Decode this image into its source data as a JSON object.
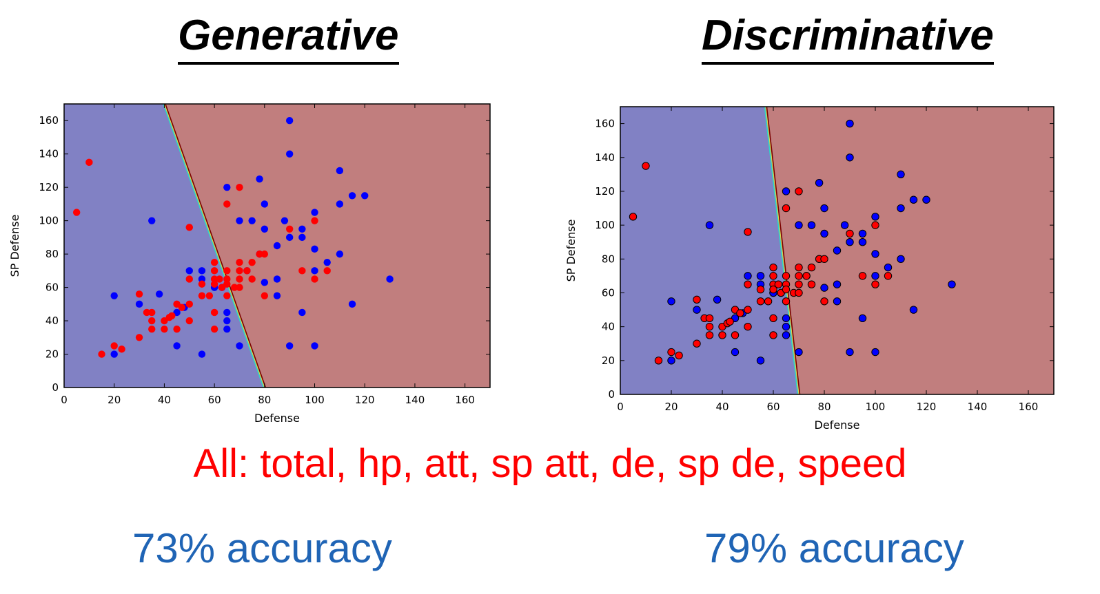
{
  "titles": {
    "left": "Generative",
    "right": "Discriminative"
  },
  "features_text": "All: total, hp, att, sp att, de, sp de, speed",
  "accuracy": {
    "left": "73% accuracy",
    "right": "79% accuracy"
  },
  "colors": {
    "region_blue": "#8181c4",
    "region_red": "#c17e7e",
    "point_blue": "#0000ff",
    "point_red": "#ff0000",
    "features": "#ff0000",
    "accuracy": "#1f64b5"
  },
  "chart_data": [
    {
      "type": "scatter",
      "title": "Generative",
      "xlabel": "Defense",
      "ylabel": "SP Defense",
      "xlim": [
        0,
        170
      ],
      "ylim": [
        0,
        170
      ],
      "xticks": [
        0,
        20,
        40,
        60,
        80,
        100,
        120,
        140,
        160
      ],
      "yticks": [
        0,
        20,
        40,
        60,
        80,
        100,
        120,
        140,
        160
      ],
      "boundary": [
        [
          40,
          170
        ],
        [
          80,
          0
        ]
      ],
      "marker_edge": false,
      "series": [
        {
          "name": "class-blue",
          "color": "#0000ff",
          "points": [
            [
              20,
              20
            ],
            [
              20,
              55
            ],
            [
              30,
              50
            ],
            [
              35,
              100
            ],
            [
              38,
              56
            ],
            [
              45,
              25
            ],
            [
              45,
              45
            ],
            [
              48,
              48
            ],
            [
              50,
              70
            ],
            [
              55,
              20
            ],
            [
              55,
              65
            ],
            [
              55,
              70
            ],
            [
              60,
              60
            ],
            [
              60,
              60
            ],
            [
              63,
              60
            ],
            [
              63,
              60
            ],
            [
              65,
              45
            ],
            [
              65,
              40
            ],
            [
              65,
              35
            ],
            [
              65,
              120
            ],
            [
              70,
              25
            ],
            [
              70,
              100
            ],
            [
              73,
              70
            ],
            [
              75,
              100
            ],
            [
              78,
              80
            ],
            [
              78,
              125
            ],
            [
              80,
              110
            ],
            [
              80,
              95
            ],
            [
              80,
              63
            ],
            [
              85,
              65
            ],
            [
              85,
              55
            ],
            [
              85,
              85
            ],
            [
              88,
              100
            ],
            [
              90,
              90
            ],
            [
              90,
              160
            ],
            [
              90,
              140
            ],
            [
              90,
              25
            ],
            [
              95,
              95
            ],
            [
              95,
              90
            ],
            [
              95,
              45
            ],
            [
              100,
              25
            ],
            [
              100,
              105
            ],
            [
              100,
              83
            ],
            [
              100,
              70
            ],
            [
              105,
              75
            ],
            [
              110,
              130
            ],
            [
              110,
              110
            ],
            [
              110,
              80
            ],
            [
              115,
              115
            ],
            [
              115,
              50
            ],
            [
              120,
              115
            ],
            [
              130,
              65
            ]
          ]
        },
        {
          "name": "class-red",
          "color": "#ff0000",
          "points": [
            [
              5,
              105
            ],
            [
              10,
              135
            ],
            [
              15,
              20
            ],
            [
              20,
              25
            ],
            [
              23,
              23
            ],
            [
              30,
              30
            ],
            [
              30,
              56
            ],
            [
              33,
              45
            ],
            [
              35,
              45
            ],
            [
              35,
              40
            ],
            [
              35,
              35
            ],
            [
              40,
              40
            ],
            [
              40,
              35
            ],
            [
              42,
              42
            ],
            [
              43,
              43
            ],
            [
              45,
              35
            ],
            [
              45,
              50
            ],
            [
              47,
              48
            ],
            [
              50,
              50
            ],
            [
              50,
              65
            ],
            [
              50,
              96
            ],
            [
              50,
              40
            ],
            [
              55,
              55
            ],
            [
              55,
              62
            ],
            [
              58,
              55
            ],
            [
              60,
              75
            ],
            [
              60,
              70
            ],
            [
              60,
              65
            ],
            [
              60,
              62
            ],
            [
              60,
              45
            ],
            [
              60,
              35
            ],
            [
              62,
              65
            ],
            [
              63,
              60
            ],
            [
              65,
              110
            ],
            [
              65,
              70
            ],
            [
              65,
              65
            ],
            [
              65,
              62
            ],
            [
              65,
              55
            ],
            [
              68,
              60
            ],
            [
              70,
              120
            ],
            [
              70,
              75
            ],
            [
              70,
              70
            ],
            [
              70,
              65
            ],
            [
              70,
              60
            ],
            [
              73,
              70
            ],
            [
              75,
              75
            ],
            [
              75,
              65
            ],
            [
              78,
              80
            ],
            [
              80,
              80
            ],
            [
              80,
              55
            ],
            [
              90,
              95
            ],
            [
              95,
              70
            ],
            [
              100,
              100
            ],
            [
              100,
              65
            ],
            [
              105,
              70
            ]
          ]
        }
      ]
    },
    {
      "type": "scatter",
      "title": "Discriminative",
      "xlabel": "Defense",
      "ylabel": "SP Defense",
      "xlim": [
        0,
        170
      ],
      "ylim": [
        0,
        170
      ],
      "xticks": [
        0,
        20,
        40,
        60,
        80,
        100,
        120,
        140,
        160
      ],
      "yticks": [
        0,
        20,
        40,
        60,
        80,
        100,
        120,
        140,
        160
      ],
      "boundary": [
        [
          57,
          170
        ],
        [
          70,
          0
        ]
      ],
      "marker_edge": true,
      "series": [
        {
          "name": "class-blue",
          "color": "#0000ff",
          "points": [
            [
              20,
              20
            ],
            [
              20,
              55
            ],
            [
              30,
              50
            ],
            [
              35,
              100
            ],
            [
              38,
              56
            ],
            [
              45,
              25
            ],
            [
              45,
              45
            ],
            [
              48,
              48
            ],
            [
              50,
              70
            ],
            [
              55,
              20
            ],
            [
              55,
              65
            ],
            [
              55,
              70
            ],
            [
              60,
              60
            ],
            [
              60,
              60
            ],
            [
              63,
              60
            ],
            [
              63,
              60
            ],
            [
              65,
              45
            ],
            [
              65,
              40
            ],
            [
              65,
              35
            ],
            [
              65,
              120
            ],
            [
              70,
              25
            ],
            [
              70,
              100
            ],
            [
              73,
              70
            ],
            [
              75,
              100
            ],
            [
              78,
              80
            ],
            [
              78,
              125
            ],
            [
              80,
              110
            ],
            [
              80,
              95
            ],
            [
              80,
              63
            ],
            [
              85,
              65
            ],
            [
              85,
              55
            ],
            [
              85,
              85
            ],
            [
              88,
              100
            ],
            [
              90,
              90
            ],
            [
              90,
              160
            ],
            [
              90,
              140
            ],
            [
              90,
              25
            ],
            [
              95,
              95
            ],
            [
              95,
              90
            ],
            [
              95,
              45
            ],
            [
              100,
              25
            ],
            [
              100,
              105
            ],
            [
              100,
              83
            ],
            [
              100,
              70
            ],
            [
              105,
              75
            ],
            [
              110,
              130
            ],
            [
              110,
              110
            ],
            [
              110,
              80
            ],
            [
              115,
              115
            ],
            [
              115,
              50
            ],
            [
              120,
              115
            ],
            [
              130,
              65
            ]
          ]
        },
        {
          "name": "class-red",
          "color": "#ff0000",
          "points": [
            [
              5,
              105
            ],
            [
              10,
              135
            ],
            [
              15,
              20
            ],
            [
              20,
              25
            ],
            [
              23,
              23
            ],
            [
              30,
              30
            ],
            [
              30,
              56
            ],
            [
              33,
              45
            ],
            [
              35,
              45
            ],
            [
              35,
              40
            ],
            [
              35,
              35
            ],
            [
              40,
              40
            ],
            [
              40,
              35
            ],
            [
              42,
              42
            ],
            [
              43,
              43
            ],
            [
              45,
              35
            ],
            [
              45,
              50
            ],
            [
              47,
              48
            ],
            [
              50,
              50
            ],
            [
              50,
              65
            ],
            [
              50,
              96
            ],
            [
              50,
              40
            ],
            [
              55,
              55
            ],
            [
              55,
              62
            ],
            [
              58,
              55
            ],
            [
              60,
              75
            ],
            [
              60,
              70
            ],
            [
              60,
              65
            ],
            [
              60,
              62
            ],
            [
              60,
              45
            ],
            [
              60,
              35
            ],
            [
              62,
              65
            ],
            [
              63,
              60
            ],
            [
              65,
              110
            ],
            [
              65,
              70
            ],
            [
              65,
              65
            ],
            [
              65,
              62
            ],
            [
              65,
              55
            ],
            [
              68,
              60
            ],
            [
              70,
              120
            ],
            [
              70,
              75
            ],
            [
              70,
              70
            ],
            [
              70,
              65
            ],
            [
              70,
              60
            ],
            [
              73,
              70
            ],
            [
              75,
              75
            ],
            [
              75,
              65
            ],
            [
              78,
              80
            ],
            [
              80,
              80
            ],
            [
              80,
              55
            ],
            [
              90,
              95
            ],
            [
              95,
              70
            ],
            [
              100,
              100
            ],
            [
              100,
              65
            ],
            [
              105,
              70
            ]
          ]
        }
      ]
    }
  ]
}
